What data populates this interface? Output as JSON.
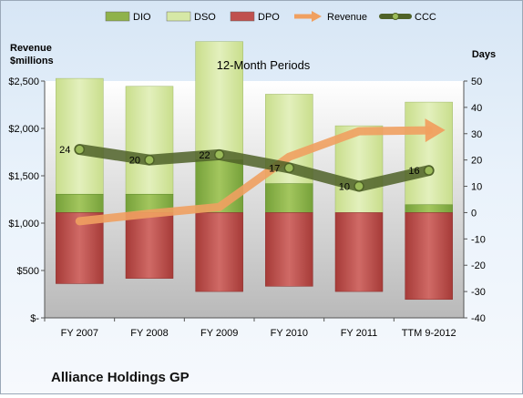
{
  "chart_data": {
    "type": "bar",
    "title": "12-Month Periods",
    "footer_title": "Alliance Holdings GP",
    "y_left_label_line1": "Revenue",
    "y_left_label_line2": "$millions",
    "y_right_label": "Days",
    "categories": [
      "FY 2007",
      "FY 2008",
      "FY 2009",
      "FY 2010",
      "FY 2011",
      "TTM 9-2012"
    ],
    "y_left_ticks": [
      "$-",
      "$500",
      "$1,000",
      "$1,500",
      "$2,000",
      "$2,500"
    ],
    "y_left_range": [
      0,
      2500
    ],
    "y_right_range": [
      -40,
      50
    ],
    "y_right_ticks": [
      "-40",
      "-30",
      "-20",
      "-10",
      "0",
      "10",
      "20",
      "30",
      "40",
      "50"
    ],
    "legend": {
      "position": "top",
      "entries": [
        {
          "label": "DIO",
          "kind": "bar",
          "color": "#8fb24a"
        },
        {
          "label": "DSO",
          "kind": "bar",
          "color": "#d6e8a6"
        },
        {
          "label": "DPO",
          "kind": "bar",
          "color": "#c0504d"
        },
        {
          "label": "Revenue",
          "kind": "arrow",
          "color": "#f0a060"
        },
        {
          "label": "CCC",
          "kind": "line",
          "color": "#4f6228"
        }
      ]
    },
    "series": [
      {
        "name": "DIO",
        "axis": "right",
        "values": [
          7,
          7,
          20,
          11,
          0,
          3
        ]
      },
      {
        "name": "DSO",
        "axis": "right",
        "values": [
          44,
          41,
          45,
          34,
          33,
          39
        ]
      },
      {
        "name": "DPO",
        "axis": "right",
        "values": [
          -27,
          -25,
          -30,
          -28,
          -30,
          -33
        ]
      },
      {
        "name": "Revenue",
        "axis": "left",
        "values": [
          1020,
          1100,
          1170,
          1700,
          1970,
          1980
        ]
      },
      {
        "name": "CCC",
        "axis": "right",
        "values": [
          24,
          20,
          22,
          17,
          10,
          16
        ],
        "data_labels": [
          "24",
          "20",
          "22",
          "17",
          "10",
          "16"
        ]
      }
    ],
    "grid": false
  }
}
